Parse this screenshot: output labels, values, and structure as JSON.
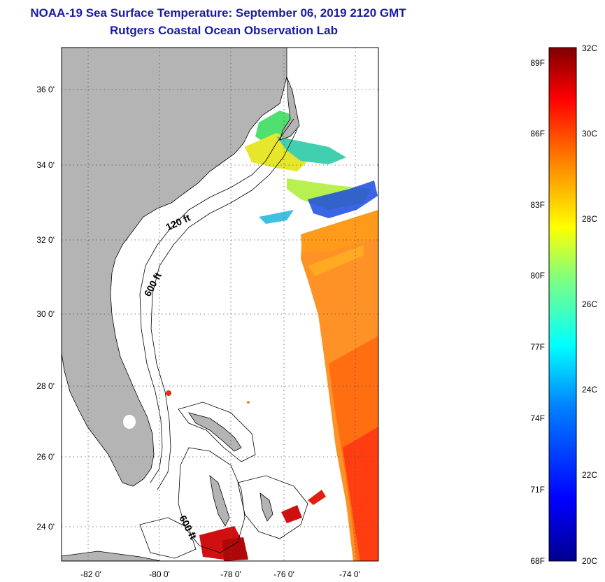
{
  "title": {
    "line1": "NOAA-19 Sea Surface Temperature:  September 06, 2019 2120 GMT",
    "line2": "Rutgers Coastal Ocean Observation Lab"
  },
  "map": {
    "lon_labels": [
      "-82 0'",
      "-80 0'",
      "-78 0'",
      "-76 0'",
      "-74 0'"
    ],
    "lat_labels": [
      "36 0'",
      "34 0'",
      "32 0'",
      "30 0'",
      "28 0'",
      "26 0'",
      "24 0'"
    ],
    "isobath_labels": [
      "120 ft",
      "600 ft",
      "600 ft"
    ],
    "land_color": "#b4b4b4",
    "grid": "dotted"
  },
  "colorbar": {
    "fahrenheit_labels": [
      "89F",
      "86F",
      "83F",
      "80F",
      "77F",
      "74F",
      "71F",
      "68F"
    ],
    "celsius_labels": [
      "32C",
      "30C",
      "28C",
      "26C",
      "24C",
      "22C",
      "20C"
    ],
    "colors": [
      "#7f0000",
      "#ff0000",
      "#ff8000",
      "#ffff00",
      "#80ff80",
      "#00ffff",
      "#0080ff",
      "#0000ff",
      "#00008f"
    ]
  }
}
